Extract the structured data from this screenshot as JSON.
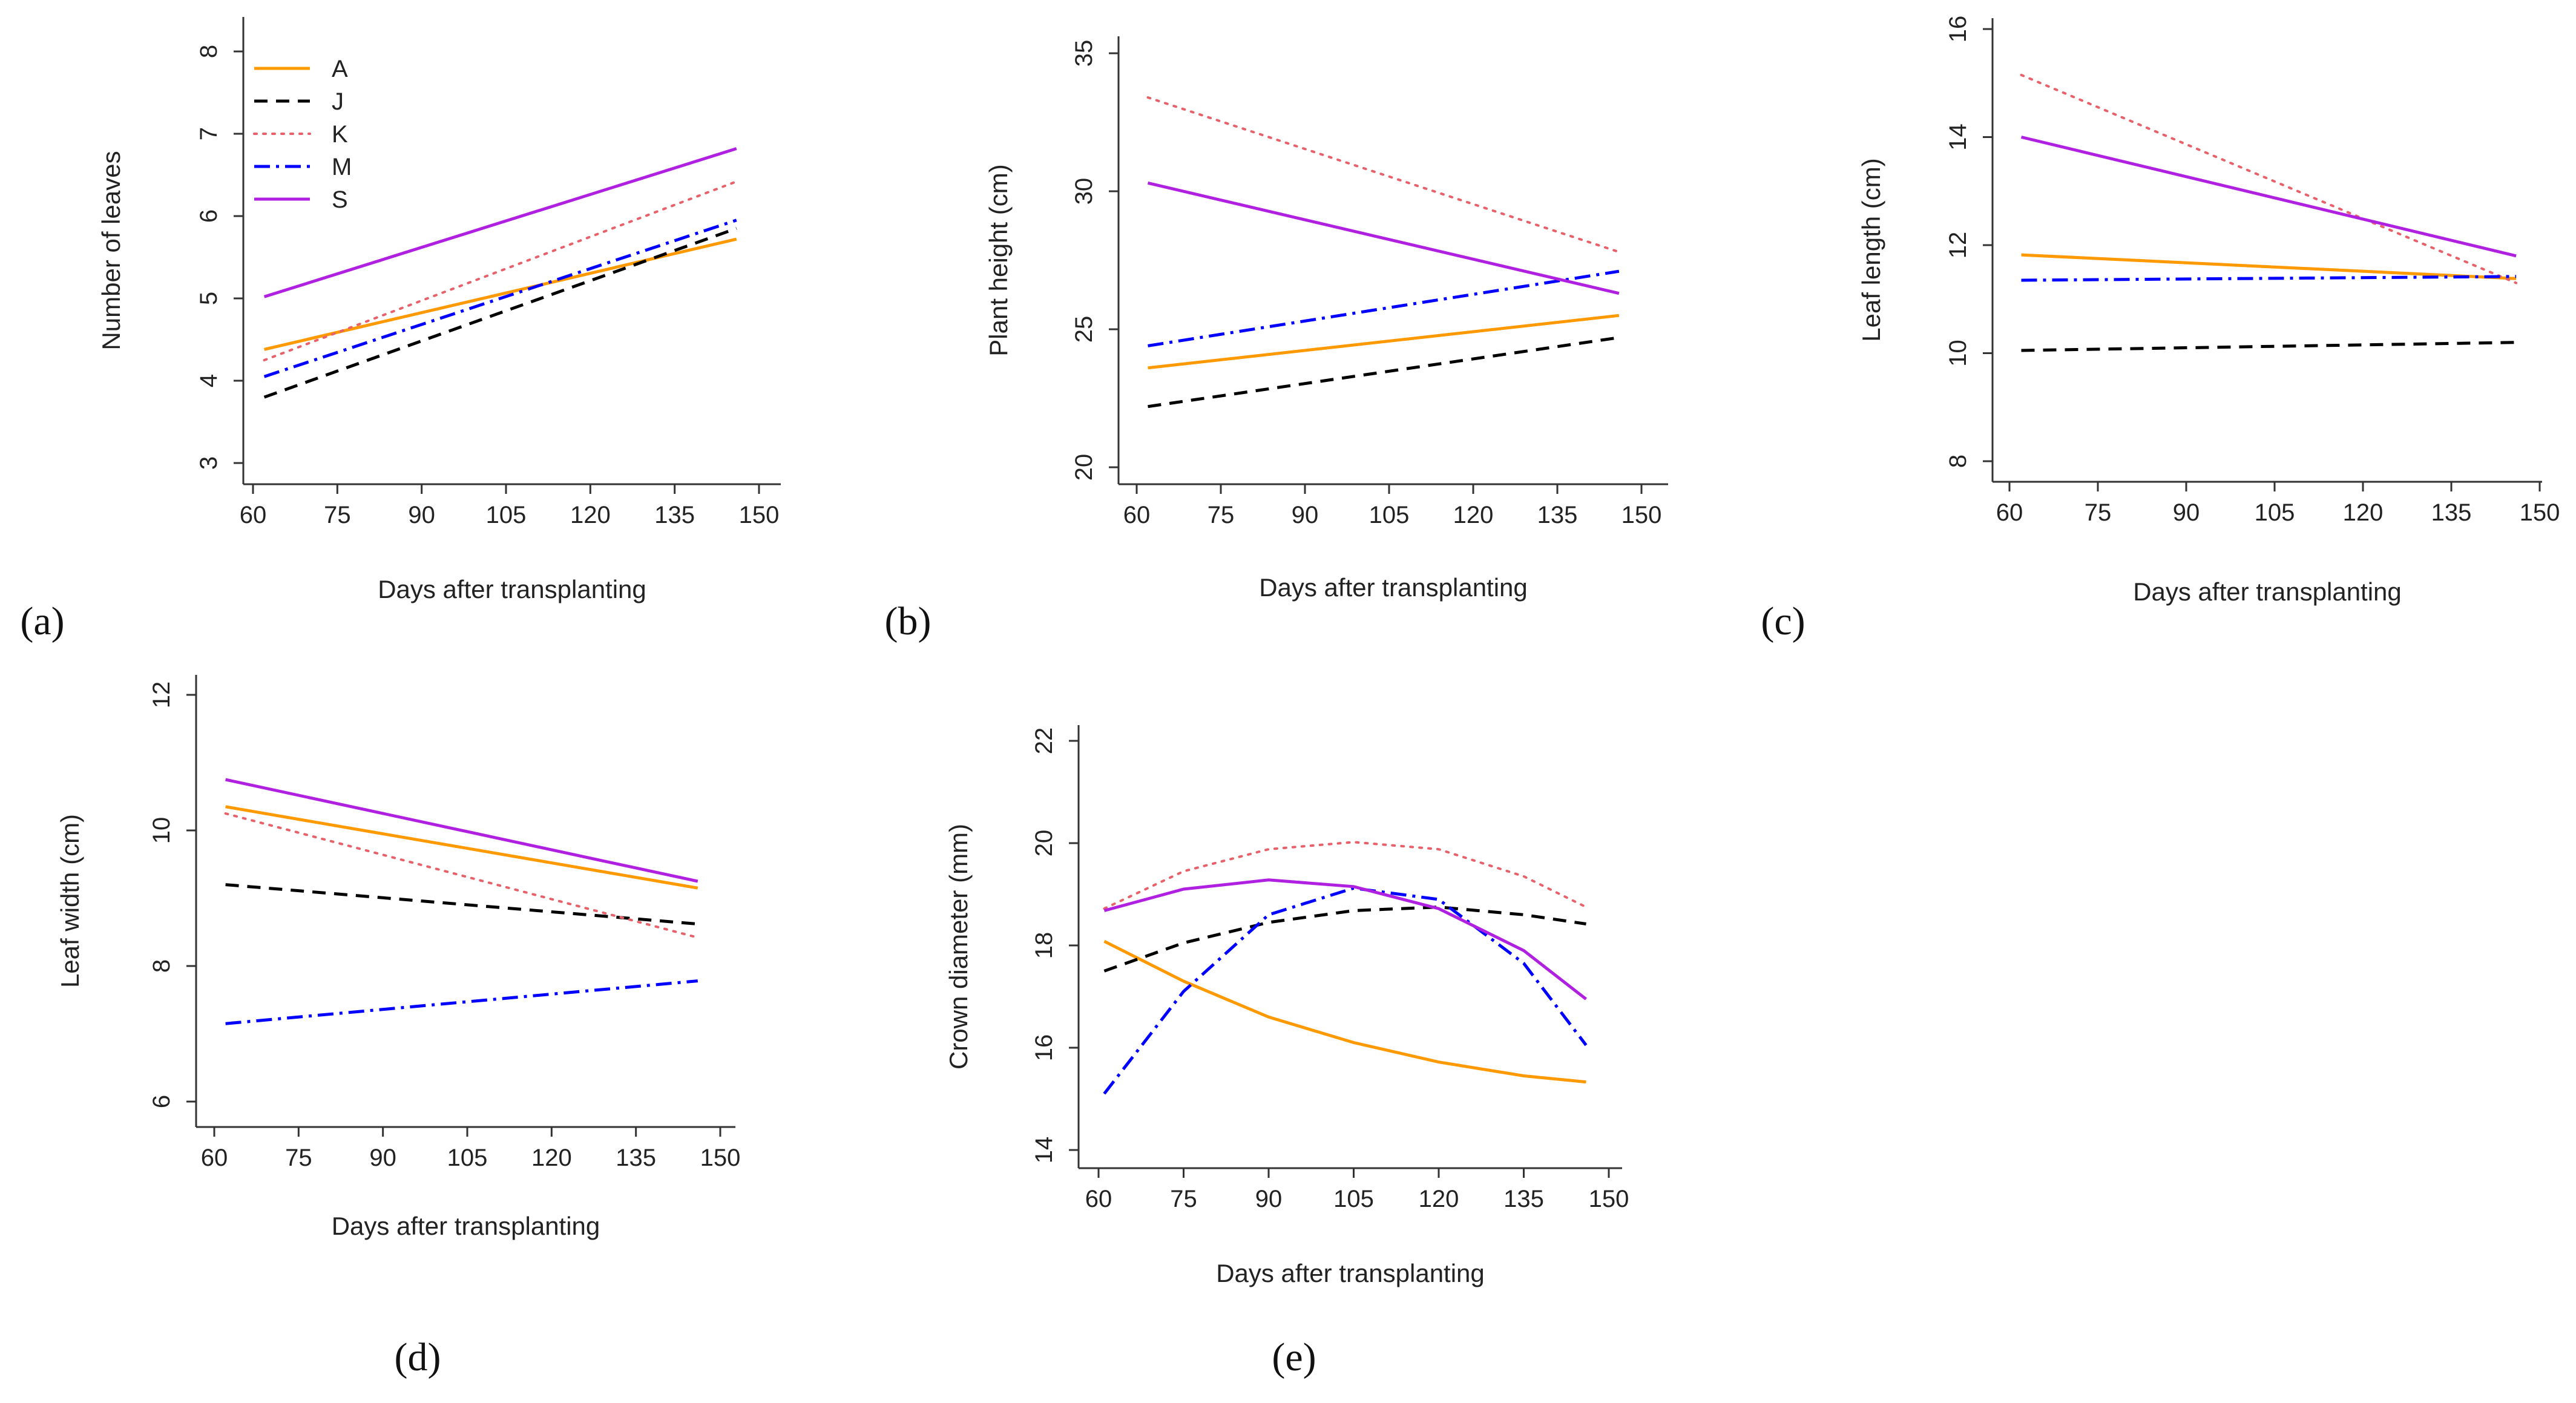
{
  "chart_data": [
    {
      "panel": "(a)",
      "type": "line",
      "xlabel": "Days after transplanting",
      "ylabel": "Number of leaves",
      "xticks": [
        "60",
        "75",
        "90",
        "105",
        "120",
        "135",
        "150"
      ],
      "yticks": [
        "3",
        "4",
        "5",
        "6",
        "7",
        "8"
      ],
      "xlim": [
        60,
        150
      ],
      "ylim": [
        3,
        8
      ],
      "legend": {
        "position": "top-left",
        "entries": [
          "A",
          "J",
          "K",
          "M",
          "S"
        ]
      },
      "series": [
        {
          "name": "A",
          "color": "#FF9900",
          "dash": "solid",
          "x": [
            62,
            146
          ],
          "y": [
            4.38,
            5.72
          ]
        },
        {
          "name": "J",
          "color": "#000000",
          "dash": "dashed",
          "x": [
            62,
            146
          ],
          "y": [
            3.8,
            5.85
          ]
        },
        {
          "name": "K",
          "color": "#E8606A",
          "dash": "dotted",
          "x": [
            62,
            146
          ],
          "y": [
            4.25,
            6.42
          ]
        },
        {
          "name": "M",
          "color": "#0000FF",
          "dash": "dashdot",
          "x": [
            62,
            146
          ],
          "y": [
            4.05,
            5.95
          ]
        },
        {
          "name": "S",
          "color": "#B020E0",
          "dash": "solid",
          "x": [
            62,
            146
          ],
          "y": [
            5.02,
            6.82
          ]
        }
      ]
    },
    {
      "panel": "(b)",
      "type": "line",
      "xlabel": "Days after transplanting",
      "ylabel": "Plant height (cm)",
      "xticks": [
        "60",
        "75",
        "90",
        "105",
        "120",
        "135",
        "150"
      ],
      "yticks": [
        "20",
        "25",
        "30",
        "35"
      ],
      "xlim": [
        60,
        150
      ],
      "ylim": [
        20,
        35
      ],
      "series": [
        {
          "name": "A",
          "color": "#FF9900",
          "dash": "solid",
          "x": [
            62,
            146
          ],
          "y": [
            23.6,
            25.5
          ]
        },
        {
          "name": "J",
          "color": "#000000",
          "dash": "dashed",
          "x": [
            62,
            146
          ],
          "y": [
            22.2,
            24.7
          ]
        },
        {
          "name": "K",
          "color": "#E8606A",
          "dash": "dotted",
          "x": [
            62,
            146
          ],
          "y": [
            33.4,
            27.8
          ]
        },
        {
          "name": "M",
          "color": "#0000FF",
          "dash": "dashdot",
          "x": [
            62,
            146
          ],
          "y": [
            24.4,
            27.1
          ]
        },
        {
          "name": "S",
          "color": "#B020E0",
          "dash": "solid",
          "x": [
            62,
            146
          ],
          "y": [
            30.3,
            26.3
          ]
        }
      ]
    },
    {
      "panel": "(c)",
      "type": "line",
      "xlabel": "Days after transplanting",
      "ylabel": "Leaf length (cm)",
      "xticks": [
        "60",
        "75",
        "90",
        "105",
        "120",
        "135",
        "150"
      ],
      "yticks": [
        "8",
        "10",
        "12",
        "14",
        "16"
      ],
      "xlim": [
        60,
        150
      ],
      "ylim": [
        8,
        16
      ],
      "series": [
        {
          "name": "A",
          "color": "#FF9900",
          "dash": "solid",
          "x": [
            62,
            146
          ],
          "y": [
            11.82,
            11.38
          ]
        },
        {
          "name": "J",
          "color": "#000000",
          "dash": "dashed",
          "x": [
            62,
            146
          ],
          "y": [
            10.05,
            10.2
          ]
        },
        {
          "name": "K",
          "color": "#E8606A",
          "dash": "dotted",
          "x": [
            62,
            146
          ],
          "y": [
            15.15,
            11.3
          ]
        },
        {
          "name": "M",
          "color": "#0000FF",
          "dash": "dashdot",
          "x": [
            62,
            146
          ],
          "y": [
            11.35,
            11.42
          ]
        },
        {
          "name": "S",
          "color": "#B020E0",
          "dash": "solid",
          "x": [
            62,
            146
          ],
          "y": [
            14.0,
            11.8
          ]
        }
      ]
    },
    {
      "panel": "(d)",
      "type": "line",
      "xlabel": "Days after transplanting",
      "ylabel": "Leaf width (cm)",
      "xticks": [
        "60",
        "75",
        "90",
        "105",
        "120",
        "135",
        "150"
      ],
      "yticks": [
        "6",
        "8",
        "10",
        "12"
      ],
      "xlim": [
        60,
        150
      ],
      "ylim": [
        6,
        12
      ],
      "series": [
        {
          "name": "A",
          "color": "#FF9900",
          "dash": "solid",
          "x": [
            62,
            146
          ],
          "y": [
            10.35,
            9.15
          ]
        },
        {
          "name": "J",
          "color": "#000000",
          "dash": "dashed",
          "x": [
            62,
            146
          ],
          "y": [
            9.2,
            8.62
          ]
        },
        {
          "name": "K",
          "color": "#E8606A",
          "dash": "dotted",
          "x": [
            62,
            146
          ],
          "y": [
            10.25,
            8.42
          ]
        },
        {
          "name": "M",
          "color": "#0000FF",
          "dash": "dashdot",
          "x": [
            62,
            146
          ],
          "y": [
            7.15,
            7.78
          ]
        },
        {
          "name": "S",
          "color": "#B020E0",
          "dash": "solid",
          "x": [
            62,
            146
          ],
          "y": [
            10.75,
            9.25
          ]
        }
      ]
    },
    {
      "panel": "(e)",
      "type": "line",
      "xlabel": "Days after transplanting",
      "ylabel": "Crown diameter (mm)",
      "xticks": [
        "60",
        "75",
        "90",
        "105",
        "120",
        "135",
        "150"
      ],
      "yticks": [
        "14",
        "16",
        "18",
        "20",
        "22"
      ],
      "xlim": [
        60,
        150
      ],
      "ylim": [
        14,
        22
      ],
      "series": [
        {
          "name": "A",
          "color": "#FF9900",
          "dash": "solid",
          "x": [
            61,
            75,
            90,
            105,
            120,
            135,
            146
          ],
          "y": [
            18.08,
            17.3,
            16.6,
            16.1,
            15.72,
            15.45,
            15.33
          ]
        },
        {
          "name": "J",
          "color": "#000000",
          "dash": "dashed",
          "x": [
            61,
            75,
            90,
            105,
            120,
            135,
            146
          ],
          "y": [
            17.5,
            18.05,
            18.45,
            18.68,
            18.75,
            18.6,
            18.42
          ]
        },
        {
          "name": "K",
          "color": "#E8606A",
          "dash": "dotted",
          "x": [
            61,
            75,
            90,
            105,
            120,
            135,
            146
          ],
          "y": [
            18.72,
            19.45,
            19.88,
            20.02,
            19.88,
            19.35,
            18.75
          ]
        },
        {
          "name": "M",
          "color": "#0000FF",
          "dash": "dashdot",
          "x": [
            61,
            75,
            90,
            105,
            120,
            135,
            146
          ],
          "y": [
            15.1,
            17.1,
            18.6,
            19.12,
            18.9,
            17.65,
            16.05
          ]
        },
        {
          "name": "S",
          "color": "#B020E0",
          "dash": "solid",
          "x": [
            61,
            75,
            90,
            105,
            120,
            135,
            146
          ],
          "y": [
            18.68,
            19.1,
            19.28,
            19.15,
            18.72,
            17.9,
            16.95
          ]
        }
      ]
    }
  ]
}
